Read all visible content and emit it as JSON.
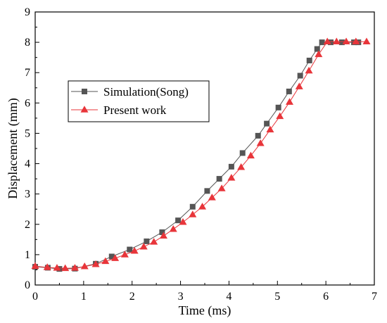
{
  "chart_data": {
    "type": "line",
    "title": "",
    "xlabel": "Time (ms)",
    "ylabel": "Displacement (mm)",
    "xlim": [
      0,
      7
    ],
    "ylim": [
      0,
      9
    ],
    "xticks": [
      "0",
      "1",
      "2",
      "3",
      "4",
      "5",
      "6",
      "7"
    ],
    "yticks": [
      "0",
      "1",
      "2",
      "3",
      "4",
      "5",
      "6",
      "7",
      "8",
      "9"
    ],
    "grid": false,
    "legend_position": "upper-left",
    "series": [
      {
        "name": "Simulation(Song)",
        "color": "#555555",
        "marker": "square",
        "points": [
          [
            0.0,
            0.6
          ],
          [
            0.26,
            0.57
          ],
          [
            0.5,
            0.53
          ],
          [
            0.82,
            0.54
          ],
          [
            1.25,
            0.7
          ],
          [
            1.58,
            0.94
          ],
          [
            1.95,
            1.17
          ],
          [
            2.3,
            1.44
          ],
          [
            2.62,
            1.74
          ],
          [
            2.95,
            2.13
          ],
          [
            3.25,
            2.58
          ],
          [
            3.55,
            3.1
          ],
          [
            3.8,
            3.5
          ],
          [
            4.05,
            3.9
          ],
          [
            4.28,
            4.35
          ],
          [
            4.6,
            4.92
          ],
          [
            4.78,
            5.32
          ],
          [
            5.02,
            5.85
          ],
          [
            5.24,
            6.38
          ],
          [
            5.47,
            6.9
          ],
          [
            5.66,
            7.4
          ],
          [
            5.82,
            7.78
          ],
          [
            5.92,
            8.0
          ],
          [
            6.1,
            8.0
          ],
          [
            6.33,
            8.0
          ],
          [
            6.58,
            8.0
          ],
          [
            6.67,
            8.0
          ]
        ]
      },
      {
        "name": "Present work",
        "color": "#e8353a",
        "marker": "triangle",
        "points": [
          [
            0.0,
            0.62
          ],
          [
            0.25,
            0.58
          ],
          [
            0.45,
            0.56
          ],
          [
            0.62,
            0.55
          ],
          [
            0.82,
            0.56
          ],
          [
            1.02,
            0.61
          ],
          [
            1.25,
            0.68
          ],
          [
            1.45,
            0.78
          ],
          [
            1.65,
            0.88
          ],
          [
            1.85,
            1.0
          ],
          [
            2.05,
            1.12
          ],
          [
            2.24,
            1.26
          ],
          [
            2.45,
            1.42
          ],
          [
            2.65,
            1.62
          ],
          [
            2.85,
            1.84
          ],
          [
            3.05,
            2.07
          ],
          [
            3.25,
            2.32
          ],
          [
            3.45,
            2.58
          ],
          [
            3.65,
            2.88
          ],
          [
            3.85,
            3.18
          ],
          [
            4.05,
            3.53
          ],
          [
            4.25,
            3.88
          ],
          [
            4.45,
            4.26
          ],
          [
            4.65,
            4.67
          ],
          [
            4.85,
            5.12
          ],
          [
            5.05,
            5.56
          ],
          [
            5.25,
            6.03
          ],
          [
            5.45,
            6.54
          ],
          [
            5.65,
            7.06
          ],
          [
            5.85,
            7.6
          ],
          [
            6.03,
            8.02
          ],
          [
            6.22,
            8.02
          ],
          [
            6.42,
            8.02
          ],
          [
            6.62,
            8.02
          ],
          [
            6.84,
            8.02
          ]
        ]
      }
    ]
  }
}
